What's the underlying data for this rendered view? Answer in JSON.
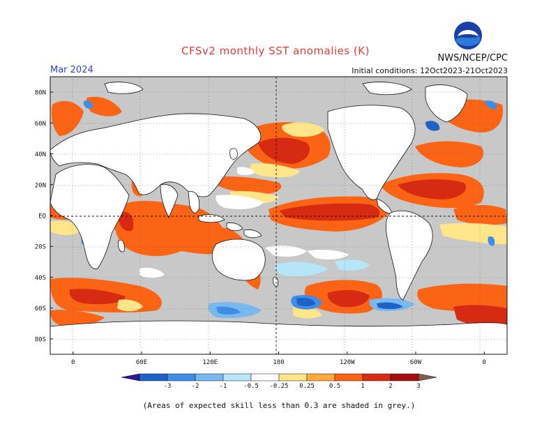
{
  "header": {
    "title": "CFSv2 monthly SST anomalies (K)",
    "agency": "NWS/NCEP/CPC",
    "valid_month": "Mar 2024",
    "initial_conditions": "Initial conditions: 12Oct2023-21Oct2023",
    "logo_text": "NOAA"
  },
  "map": {
    "lat_labels": [
      "80N",
      "60N",
      "40N",
      "20N",
      "EQ",
      "20S",
      "40S",
      "60S",
      "80S"
    ],
    "lon_labels": [
      "0",
      "60E",
      "120E",
      "180",
      "120W",
      "60W",
      "0"
    ],
    "lat_values": [
      80,
      60,
      40,
      20,
      0,
      -20,
      -40,
      -60,
      -80
    ],
    "lon_values": [
      0,
      60,
      120,
      180,
      240,
      300,
      360
    ],
    "lon_range": [
      -20,
      380
    ],
    "lat_range": [
      -90,
      90
    ]
  },
  "colorbar": {
    "labels": [
      "-3",
      "-2",
      "-1",
      "-0.5",
      "-0.25",
      "0.25",
      "0.5",
      "1",
      "2",
      "3"
    ],
    "colors": [
      "#2a1a98",
      "#1d62c8",
      "#3d8ee6",
      "#7ab8f0",
      "#b4e6f8",
      "#ffffff",
      "#ffe68a",
      "#ffaa3a",
      "#fa6414",
      "#d72a12",
      "#a60e0e",
      "#8b5a4a"
    ]
  },
  "footnote": "(Areas of expected skill less than 0.3 are shaded in grey.)",
  "colors": {
    "land": "#ffffff",
    "low_skill": "#c8c8c8",
    "grid": "#555555"
  }
}
